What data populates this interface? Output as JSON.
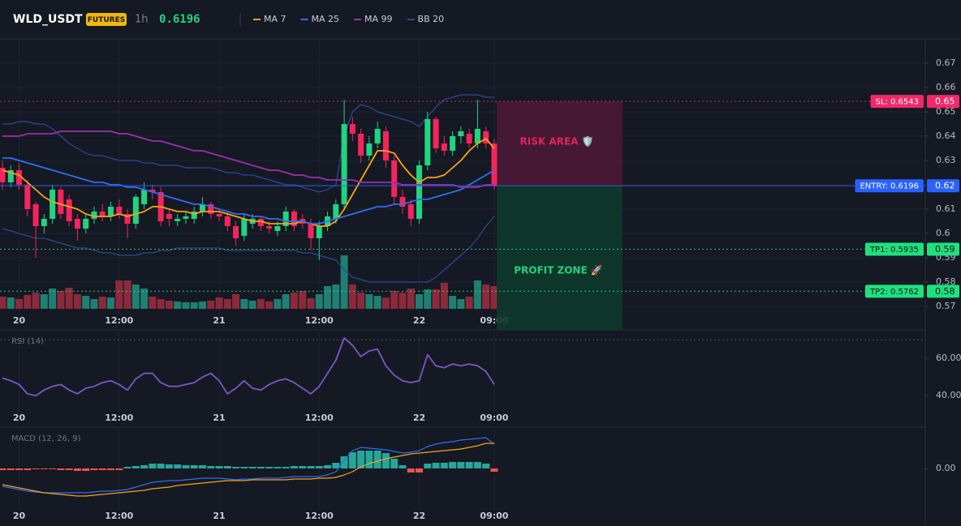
{
  "header": {
    "symbol": "WLD_USDT",
    "badge": "FUTURES",
    "interval": "1h",
    "price": 0.6196
  },
  "chart_data": [
    {
      "type": "candlestick",
      "categories": [
        null,
        null,
        "20",
        null,
        null,
        null,
        null,
        null,
        null,
        null,
        null,
        null,
        null,
        null,
        "12:00",
        null,
        null,
        null,
        null,
        null,
        null,
        null,
        null,
        null,
        null,
        null,
        "21",
        null,
        null,
        null,
        null,
        null,
        null,
        null,
        null,
        null,
        null,
        null,
        "12:00",
        null,
        null,
        null,
        null,
        null,
        null,
        null,
        null,
        null,
        null,
        null,
        "22",
        null,
        null,
        null,
        null,
        null,
        null,
        null,
        null,
        "09:00"
      ],
      "open": [
        0.627,
        0.621,
        0.626,
        0.62,
        0.612,
        0.603,
        0.606,
        0.618,
        0.614,
        0.606,
        0.602,
        0.606,
        0.609,
        0.607,
        0.611,
        0.608,
        0.604,
        0.612,
        0.618,
        0.617,
        0.608,
        0.605,
        0.606,
        0.606,
        0.609,
        0.612,
        0.608,
        0.607,
        0.603,
        0.599,
        0.604,
        0.606,
        0.603,
        0.601,
        0.603,
        0.609,
        0.606,
        0.604,
        0.598,
        0.603,
        0.606,
        0.612,
        0.645,
        0.641,
        0.632,
        0.637,
        0.642,
        0.63,
        0.615,
        0.612,
        0.606,
        0.628,
        0.647,
        0.637,
        0.634,
        0.64,
        0.641,
        0.637,
        0.642,
        0.637
      ],
      "high": [
        0.63,
        0.628,
        0.629,
        0.622,
        0.613,
        0.608,
        0.62,
        0.619,
        0.616,
        0.608,
        0.608,
        0.611,
        0.612,
        0.613,
        0.614,
        0.61,
        0.616,
        0.621,
        0.62,
        0.619,
        0.61,
        0.608,
        0.609,
        0.611,
        0.615,
        0.613,
        0.61,
        0.609,
        0.605,
        0.608,
        0.608,
        0.607,
        0.605,
        0.605,
        0.611,
        0.61,
        0.608,
        0.606,
        0.605,
        0.609,
        0.614,
        0.655,
        0.648,
        0.643,
        0.64,
        0.646,
        0.644,
        0.632,
        0.618,
        0.614,
        0.63,
        0.65,
        0.648,
        0.64,
        0.642,
        0.644,
        0.643,
        0.655,
        0.644,
        0.639
      ],
      "low": [
        0.618,
        0.619,
        0.618,
        0.607,
        0.59,
        0.6,
        0.604,
        0.606,
        0.603,
        0.597,
        0.6,
        0.604,
        0.605,
        0.605,
        0.606,
        0.598,
        0.602,
        0.61,
        0.614,
        0.603,
        0.603,
        0.603,
        0.604,
        0.604,
        0.607,
        0.606,
        0.605,
        0.601,
        0.595,
        0.597,
        0.602,
        0.601,
        0.6,
        0.599,
        0.601,
        0.601,
        0.602,
        0.593,
        0.589,
        0.601,
        0.604,
        0.61,
        0.638,
        0.629,
        0.63,
        0.635,
        0.627,
        0.612,
        0.608,
        0.603,
        0.604,
        0.626,
        0.633,
        0.632,
        0.632,
        0.637,
        0.635,
        0.635,
        0.635,
        0.618
      ],
      "close": [
        0.621,
        0.626,
        0.62,
        0.61,
        0.603,
        0.606,
        0.618,
        0.608,
        0.605,
        0.602,
        0.606,
        0.609,
        0.607,
        0.611,
        0.608,
        0.604,
        0.615,
        0.618,
        0.617,
        0.605,
        0.606,
        0.606,
        0.607,
        0.609,
        0.612,
        0.608,
        0.607,
        0.603,
        0.598,
        0.606,
        0.606,
        0.603,
        0.602,
        0.603,
        0.609,
        0.603,
        0.604,
        0.598,
        0.603,
        0.607,
        0.612,
        0.645,
        0.641,
        0.632,
        0.637,
        0.643,
        0.63,
        0.615,
        0.611,
        0.606,
        0.628,
        0.647,
        0.635,
        0.634,
        0.64,
        0.642,
        0.637,
        0.643,
        0.637,
        0.6196
      ],
      "up_color": "#22d37f",
      "down_color": "#f5245c",
      "volume": [
        15,
        14,
        12,
        17,
        20,
        18,
        25,
        22,
        26,
        18,
        16,
        12,
        15,
        14,
        35,
        35,
        30,
        25,
        15,
        12,
        10,
        9,
        8,
        8,
        9,
        10,
        14,
        12,
        18,
        12,
        10,
        12,
        9,
        12,
        18,
        20,
        22,
        13,
        18,
        28,
        30,
        66,
        30,
        20,
        18,
        16,
        14,
        22,
        20,
        25,
        18,
        24,
        24,
        32,
        16,
        12,
        15,
        35,
        30,
        28
      ],
      "volume_up_color": "#1f7f72",
      "volume_down_color": "#8c2a3c",
      "series": [
        {
          "name": "MA 7",
          "color": "#f7a21b",
          "values": [
            0.626,
            0.625,
            0.624,
            0.621,
            0.618,
            0.615,
            0.613,
            0.612,
            0.611,
            0.61,
            0.608,
            0.607,
            0.607,
            0.607,
            0.608,
            0.607,
            0.608,
            0.609,
            0.611,
            0.611,
            0.61,
            0.609,
            0.609,
            0.608,
            0.609,
            0.609,
            0.609,
            0.608,
            0.607,
            0.606,
            0.605,
            0.605,
            0.604,
            0.604,
            0.604,
            0.604,
            0.605,
            0.604,
            0.603,
            0.603,
            0.605,
            0.61,
            0.616,
            0.622,
            0.628,
            0.634,
            0.634,
            0.633,
            0.628,
            0.624,
            0.621,
            0.623,
            0.623,
            0.624,
            0.627,
            0.63,
            0.634,
            0.637,
            0.639,
            0.635
          ]
        },
        {
          "name": "MA 25",
          "color": "#2f6ff0",
          "values": [
            0.631,
            0.631,
            0.63,
            0.629,
            0.628,
            0.627,
            0.626,
            0.625,
            0.624,
            0.623,
            0.622,
            0.621,
            0.621,
            0.62,
            0.62,
            0.619,
            0.619,
            0.618,
            0.617,
            0.616,
            0.615,
            0.614,
            0.613,
            0.612,
            0.612,
            0.611,
            0.61,
            0.609,
            0.608,
            0.608,
            0.607,
            0.607,
            0.606,
            0.606,
            0.605,
            0.605,
            0.605,
            0.604,
            0.604,
            0.605,
            0.606,
            0.607,
            0.608,
            0.609,
            0.61,
            0.611,
            0.611,
            0.612,
            0.612,
            0.613,
            0.614,
            0.614,
            0.615,
            0.616,
            0.617,
            0.618,
            0.62,
            0.622,
            0.624,
            0.626
          ]
        },
        {
          "name": "MA 99",
          "color": "#9b2fae",
          "values": [
            0.64,
            0.64,
            0.64,
            0.641,
            0.641,
            0.641,
            0.641,
            0.642,
            0.642,
            0.642,
            0.642,
            0.642,
            0.642,
            0.642,
            0.641,
            0.641,
            0.64,
            0.639,
            0.638,
            0.638,
            0.637,
            0.636,
            0.635,
            0.634,
            0.634,
            0.633,
            0.632,
            0.631,
            0.63,
            0.629,
            0.628,
            0.627,
            0.626,
            0.626,
            0.625,
            0.624,
            0.624,
            0.623,
            0.623,
            0.622,
            0.622,
            0.622,
            0.622,
            0.621,
            0.621,
            0.621,
            0.621,
            0.621,
            0.62,
            0.62,
            0.62,
            0.62,
            0.62,
            0.62,
            0.62,
            0.619,
            0.619,
            0.619,
            0.62,
            0.62
          ]
        }
      ],
      "bands": [
        {
          "name": "BB 20",
          "color": "#2a4a96",
          "upper": [
            0.645,
            0.645,
            0.646,
            0.646,
            0.645,
            0.645,
            0.643,
            0.64,
            0.637,
            0.635,
            0.633,
            0.632,
            0.632,
            0.631,
            0.63,
            0.63,
            0.63,
            0.629,
            0.629,
            0.628,
            0.628,
            0.628,
            0.627,
            0.627,
            0.627,
            0.627,
            0.626,
            0.625,
            0.625,
            0.624,
            0.624,
            0.623,
            0.622,
            0.621,
            0.62,
            0.62,
            0.619,
            0.618,
            0.617,
            0.618,
            0.62,
            0.64,
            0.65,
            0.653,
            0.652,
            0.65,
            0.649,
            0.648,
            0.647,
            0.646,
            0.644,
            0.648,
            0.652,
            0.655,
            0.656,
            0.657,
            0.657,
            0.657,
            0.656,
            0.656
          ],
          "lower": [
            0.602,
            0.601,
            0.6,
            0.599,
            0.598,
            0.598,
            0.597,
            0.596,
            0.595,
            0.594,
            0.594,
            0.593,
            0.592,
            0.592,
            0.591,
            0.591,
            0.591,
            0.592,
            0.592,
            0.593,
            0.593,
            0.594,
            0.594,
            0.594,
            0.594,
            0.594,
            0.594,
            0.593,
            0.593,
            0.593,
            0.593,
            0.593,
            0.593,
            0.593,
            0.593,
            0.593,
            0.592,
            0.592,
            0.591,
            0.59,
            0.589,
            0.585,
            0.582,
            0.581,
            0.58,
            0.58,
            0.58,
            0.58,
            0.58,
            0.58,
            0.58,
            0.58,
            0.582,
            0.585,
            0.588,
            0.591,
            0.594,
            0.598,
            0.603,
            0.607
          ]
        }
      ],
      "ylim": [
        0.568,
        0.68
      ],
      "yticks": [
        0.57,
        0.58,
        0.59,
        0.6,
        0.61,
        0.62,
        0.63,
        0.64,
        0.65,
        0.66,
        0.67
      ],
      "grid": true,
      "trade": [
        {
          "label": "SL: 0.6543",
          "value": 0.6543,
          "axis_label": "0.65",
          "color": "#f2286a",
          "style": "dotted"
        },
        {
          "label": "ENTRY: 0.6196",
          "value": 0.6196,
          "axis_label": "0.62",
          "color": "#2962ff",
          "style": "solid"
        },
        {
          "label": "TP1: 0.5935",
          "value": 0.5935,
          "axis_label": "0.59",
          "color": "#1fe07f",
          "style": "dotted"
        },
        {
          "label": "TP2: 0.5762",
          "value": 0.5762,
          "axis_label": "0.58",
          "color": "#1fe07f",
          "style": "dotted"
        }
      ],
      "zones": [
        {
          "label": "RISK AREA 🛡️",
          "color": "#e0245e",
          "fill": "#4a1a35"
        },
        {
          "label": "PROFIT ZONE 🚀",
          "color": "#22d37f",
          "fill": "#0e3a2b"
        }
      ]
    },
    {
      "type": "line",
      "title": "RSI (14)",
      "series": [
        {
          "color": "#7e57c2",
          "values": [
            49.5,
            48,
            46,
            41,
            40,
            43,
            45,
            46,
            43,
            41,
            44,
            45,
            47,
            48,
            46,
            43,
            49,
            52,
            52,
            47,
            45,
            45,
            46,
            47,
            50,
            52,
            48,
            41,
            44,
            48,
            44,
            43,
            46,
            48,
            49,
            47,
            44,
            41,
            45,
            52,
            59,
            71,
            67,
            61,
            64,
            65,
            56,
            51,
            48,
            47,
            48,
            62,
            56,
            55,
            57,
            56,
            57,
            56,
            53,
            46
          ]
        }
      ],
      "ylim": [
        34,
        74
      ],
      "yticks": [
        {
          "value": 40,
          "label": "40.00"
        },
        {
          "value": 60,
          "label": "60.00"
        }
      ],
      "levels": [
        70
      ]
    },
    {
      "type": "macd",
      "title": "MACD (12, 26, 9)",
      "series": [
        {
          "color": "#2f6ff0",
          "values": [
            -0.0022,
            -0.0024,
            -0.0026,
            -0.0028,
            -0.0029,
            -0.003,
            -0.003,
            -0.003,
            -0.003,
            -0.003,
            -0.003,
            -0.0029,
            -0.0028,
            -0.0028,
            -0.0027,
            -0.0026,
            -0.0023,
            -0.002,
            -0.0017,
            -0.0016,
            -0.0015,
            -0.0015,
            -0.0014,
            -0.0013,
            -0.0012,
            -0.0012,
            -0.0012,
            -0.0013,
            -0.0014,
            -0.0013,
            -0.0013,
            -0.0012,
            -0.0012,
            -0.0012,
            -0.0011,
            -0.001,
            -0.001,
            -0.001,
            -0.001,
            -0.0008,
            -0.0004,
            0.001,
            0.0022,
            0.0026,
            0.0025,
            0.0024,
            0.0023,
            0.0021,
            0.0019,
            0.002,
            0.0022,
            0.0027,
            0.003,
            0.0032,
            0.0033,
            0.0035,
            0.0036,
            0.0037,
            0.0038,
            0.003
          ]
        },
        {
          "color": "#f7a21b",
          "values": [
            -0.002,
            -0.0022,
            -0.0024,
            -0.0026,
            -0.0028,
            -0.003,
            -0.0031,
            -0.0032,
            -0.0033,
            -0.0034,
            -0.0034,
            -0.0033,
            -0.0032,
            -0.0031,
            -0.003,
            -0.0029,
            -0.0028,
            -0.0027,
            -0.0025,
            -0.0024,
            -0.0023,
            -0.0021,
            -0.002,
            -0.0019,
            -0.0018,
            -0.0017,
            -0.0016,
            -0.0015,
            -0.0015,
            -0.0015,
            -0.0014,
            -0.0014,
            -0.0014,
            -0.0014,
            -0.0014,
            -0.0013,
            -0.0013,
            -0.0013,
            -0.0012,
            -0.0012,
            -0.0011,
            -0.0008,
            -0.0004,
            0.0002,
            0.0006,
            0.0009,
            0.0012,
            0.0014,
            0.0016,
            0.0018,
            0.0019,
            0.002,
            0.0021,
            0.0022,
            0.0023,
            0.0024,
            0.0026,
            0.0028,
            0.0031,
            0.0031
          ]
        }
      ],
      "histogram": [
        -0.0002,
        -0.0002,
        -0.0002,
        -0.0002,
        -0.0001,
        -0.0001,
        -0.0001,
        -0.0002,
        -0.0002,
        -0.0003,
        -0.0003,
        -0.0002,
        -0.0002,
        -0.0002,
        -0.0002,
        0.0002,
        0.0003,
        0.0004,
        0.0006,
        0.0006,
        0.0005,
        0.0005,
        0.0004,
        0.0004,
        0.0004,
        0.0003,
        0.0003,
        0.0003,
        0.0002,
        0.0002,
        0.0002,
        0.0002,
        0.0002,
        0.0002,
        0.0002,
        0.0003,
        0.0003,
        0.0003,
        0.0003,
        0.0004,
        0.0007,
        0.0015,
        0.002,
        0.0022,
        0.0022,
        0.0022,
        0.0019,
        0.0012,
        0.0004,
        -0.0005,
        -0.0005,
        0.0006,
        0.0007,
        0.0007,
        0.0008,
        0.0008,
        0.0008,
        0.0008,
        0.0006,
        -0.0004
      ],
      "hist_up_color": "#26a69a",
      "hist_down_color": "#ef5350",
      "ylim": [
        -0.0047,
        0.0048
      ],
      "yticks": [
        {
          "value": 0,
          "label": "0.00"
        }
      ]
    }
  ]
}
